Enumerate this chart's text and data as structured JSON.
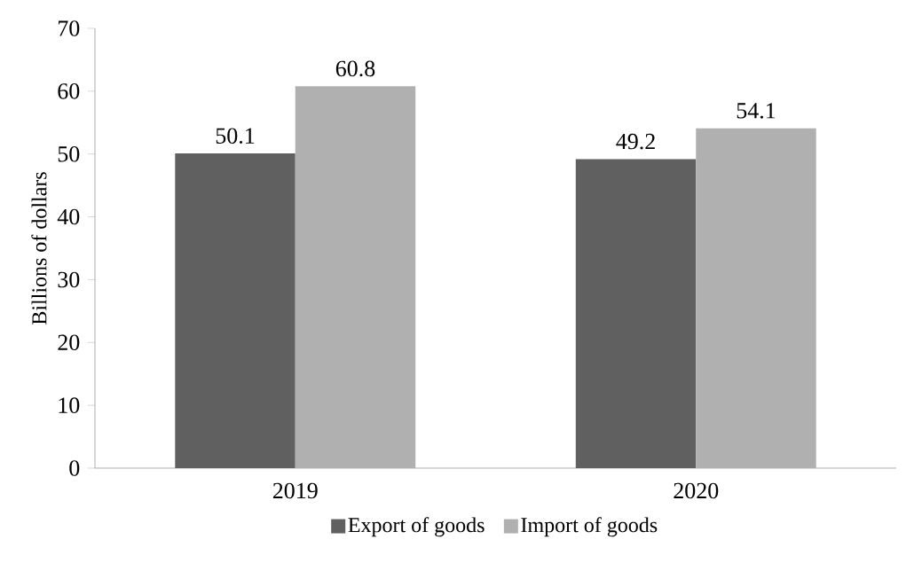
{
  "chart_data": {
    "type": "bar",
    "ylabel": "Billions of dollars",
    "categories": [
      "2019",
      "2020"
    ],
    "series": [
      {
        "name": "Export of goods",
        "color": "#606060",
        "values": [
          50.1,
          49.2
        ]
      },
      {
        "name": "Import of goods",
        "color": "#b0b0b0",
        "values": [
          60.8,
          54.1
        ]
      }
    ],
    "ylim": [
      0,
      70
    ],
    "yticks": [
      0,
      10,
      20,
      30,
      40,
      50,
      60,
      70
    ],
    "data_labels": true,
    "legend": "bottom"
  }
}
